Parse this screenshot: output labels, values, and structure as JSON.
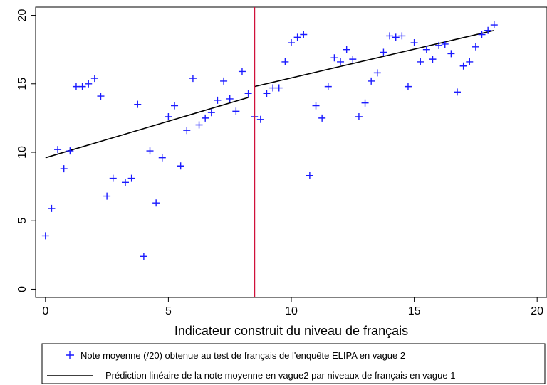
{
  "chart_data": {
    "type": "scatter",
    "title": "",
    "xlabel": "Indicateur construit du niveau de français",
    "ylabel": "",
    "xlim": [
      -0.4,
      20.4
    ],
    "ylim": [
      -0.6,
      20.6
    ],
    "xticks": [
      0,
      5,
      10,
      15,
      20
    ],
    "yticks": [
      0,
      5,
      10,
      15,
      20
    ],
    "xtick_labels": [
      "0",
      "5",
      "10",
      "15",
      "20"
    ],
    "ytick_labels": [
      "0",
      "5",
      "10",
      "15",
      "20"
    ],
    "grid": false,
    "legend_position": "bottom",
    "cutoff_x": 8.5,
    "cutoff_color": "#d0103a",
    "series": [
      {
        "name": "Note moyenne (/20) obtenue au test de français de l'enquête ELIPA en vague 2",
        "kind": "marker",
        "marker": "plus",
        "color": "#1a1aff",
        "points": [
          [
            0,
            3.9
          ],
          [
            0.25,
            5.9
          ],
          [
            0.5,
            10.2
          ],
          [
            0.75,
            8.8
          ],
          [
            1.0,
            10.1
          ],
          [
            1.25,
            14.8
          ],
          [
            1.5,
            14.8
          ],
          [
            1.75,
            15.0
          ],
          [
            2.0,
            15.4
          ],
          [
            2.25,
            14.1
          ],
          [
            2.5,
            6.8
          ],
          [
            2.75,
            8.1
          ],
          [
            3.25,
            7.8
          ],
          [
            3.5,
            8.1
          ],
          [
            3.75,
            13.5
          ],
          [
            4.0,
            2.4
          ],
          [
            4.25,
            10.1
          ],
          [
            4.5,
            6.3
          ],
          [
            4.75,
            9.6
          ],
          [
            5.0,
            12.6
          ],
          [
            5.25,
            13.4
          ],
          [
            5.5,
            9.0
          ],
          [
            5.75,
            11.6
          ],
          [
            6.0,
            15.4
          ],
          [
            6.25,
            12.0
          ],
          [
            6.5,
            12.5
          ],
          [
            6.75,
            12.9
          ],
          [
            7.0,
            13.8
          ],
          [
            7.25,
            15.2
          ],
          [
            7.5,
            13.9
          ],
          [
            7.75,
            13.0
          ],
          [
            8.0,
            15.9
          ],
          [
            8.25,
            14.3
          ],
          [
            8.5,
            12.6
          ],
          [
            8.75,
            12.4
          ],
          [
            9.0,
            14.3
          ],
          [
            9.25,
            14.7
          ],
          [
            9.5,
            14.7
          ],
          [
            9.75,
            16.6
          ],
          [
            10.0,
            18.0
          ],
          [
            10.25,
            18.4
          ],
          [
            10.5,
            18.6
          ],
          [
            10.75,
            8.3
          ],
          [
            11.0,
            13.4
          ],
          [
            11.25,
            12.5
          ],
          [
            11.5,
            14.8
          ],
          [
            11.75,
            16.9
          ],
          [
            12.0,
            16.6
          ],
          [
            12.25,
            17.5
          ],
          [
            12.5,
            16.8
          ],
          [
            12.75,
            12.6
          ],
          [
            13.0,
            13.6
          ],
          [
            13.25,
            15.2
          ],
          [
            13.5,
            15.8
          ],
          [
            13.75,
            17.3
          ],
          [
            14.0,
            18.5
          ],
          [
            14.25,
            18.4
          ],
          [
            14.5,
            18.5
          ],
          [
            14.75,
            14.8
          ],
          [
            15.0,
            18.0
          ],
          [
            15.25,
            16.6
          ],
          [
            15.5,
            17.5
          ],
          [
            15.75,
            16.8
          ],
          [
            16.0,
            17.8
          ],
          [
            16.25,
            17.9
          ],
          [
            16.5,
            17.2
          ],
          [
            16.75,
            14.4
          ],
          [
            17.0,
            16.3
          ],
          [
            17.25,
            16.6
          ],
          [
            17.5,
            17.7
          ],
          [
            17.75,
            18.6
          ],
          [
            18.0,
            18.9
          ],
          [
            18.25,
            19.3
          ]
        ]
      },
      {
        "name": "Prédiction linéaire de la note moyenne en vague2 par niveaux de français en vague 1",
        "kind": "line",
        "color": "#000000",
        "segments": [
          [
            [
              0,
              9.6
            ],
            [
              8.25,
              14.0
            ]
          ],
          [
            [
              8.5,
              14.8
            ],
            [
              18.25,
              18.9
            ]
          ]
        ]
      }
    ]
  }
}
